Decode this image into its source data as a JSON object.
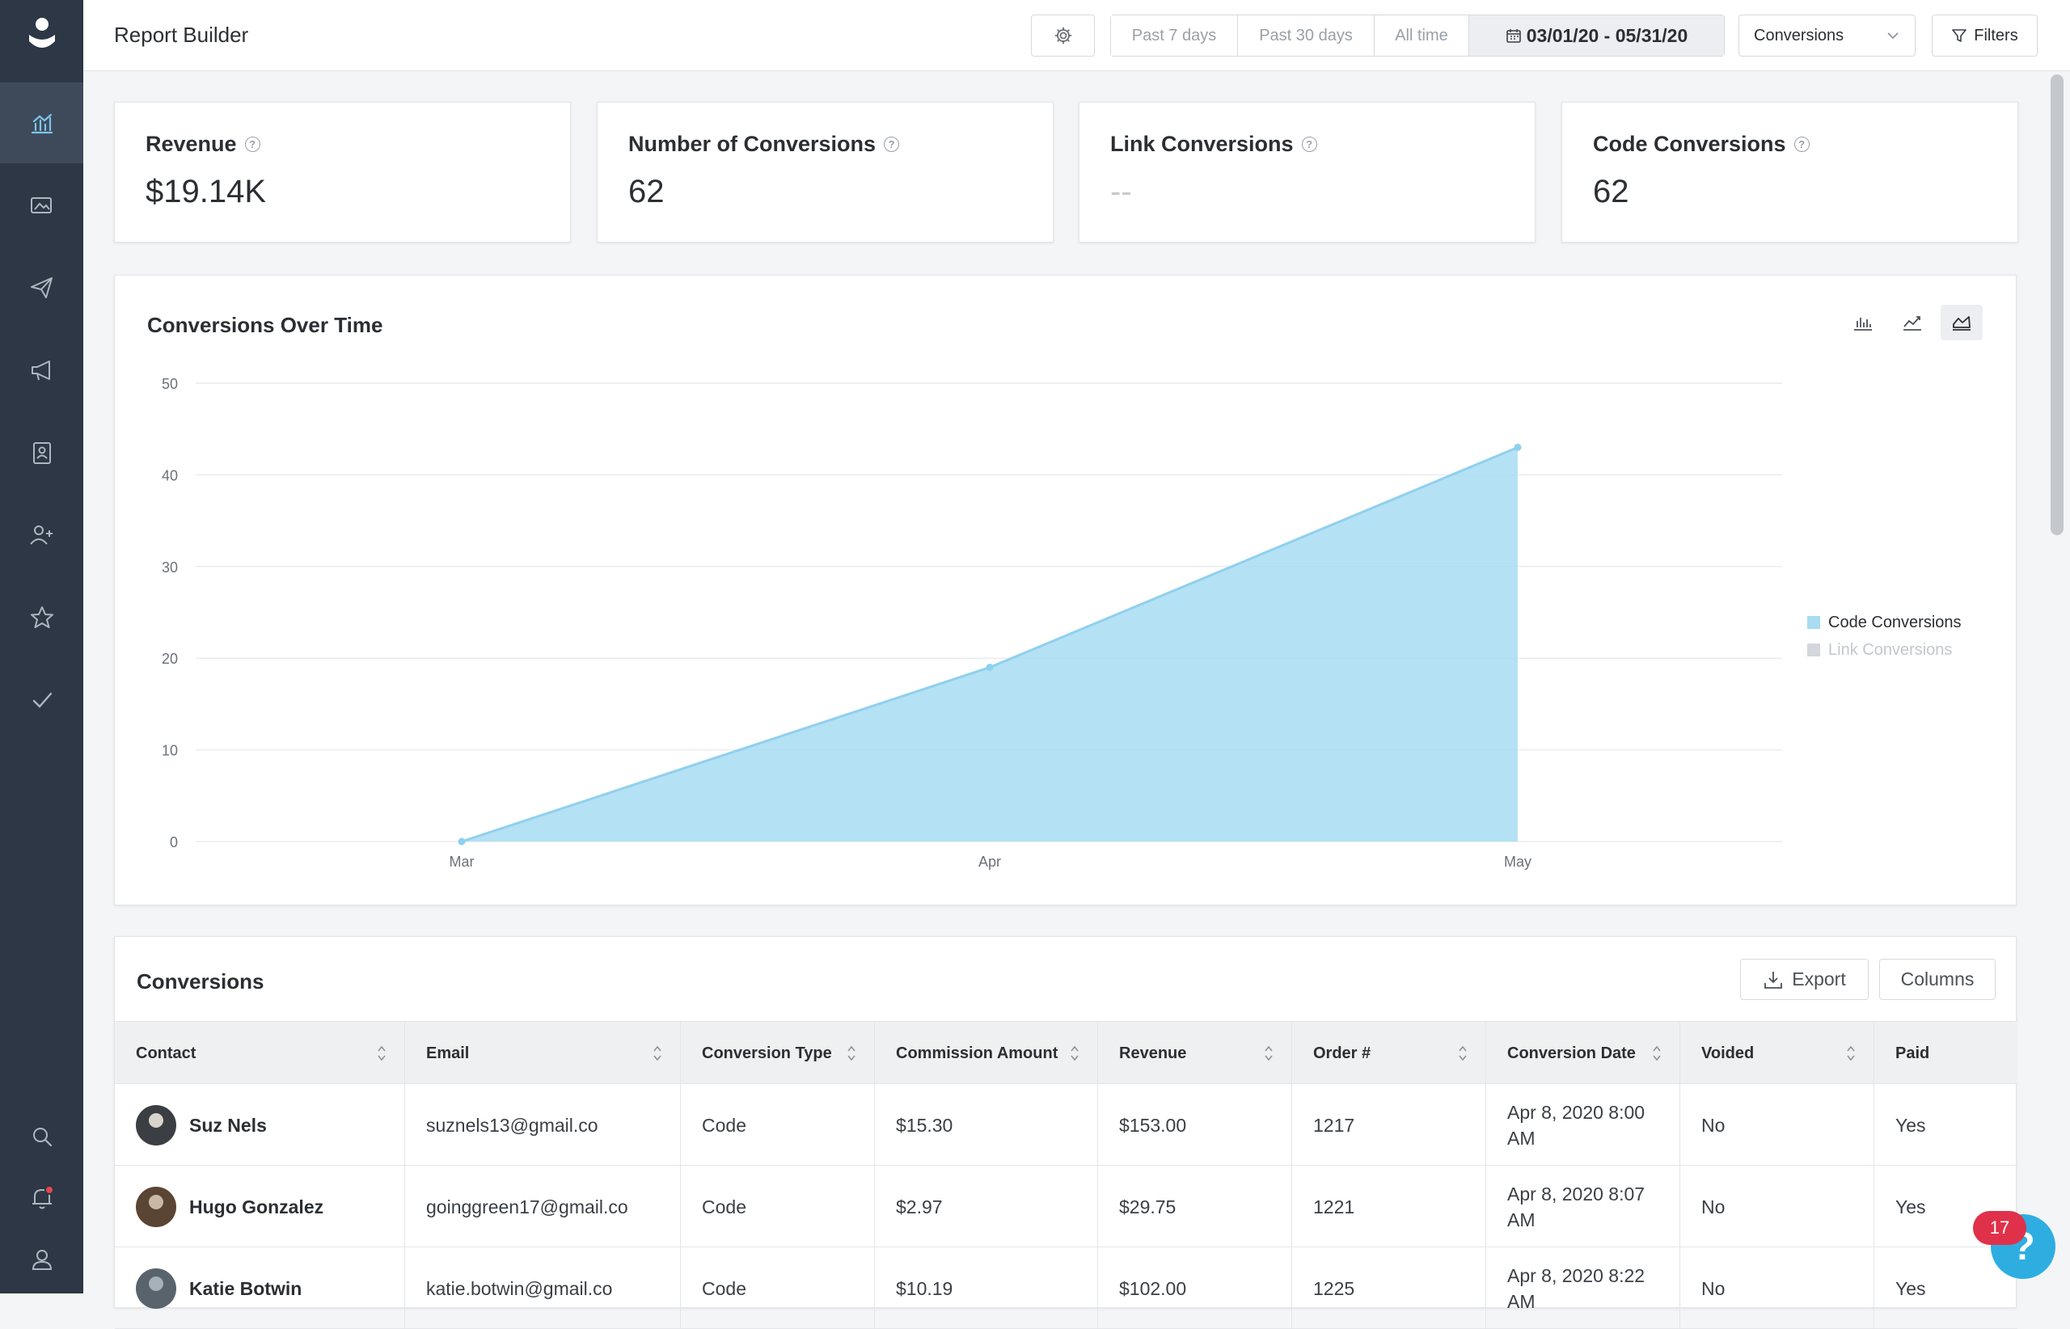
{
  "header": {
    "title": "Report Builder",
    "ranges": [
      "Past 7 days",
      "Past 30 days",
      "All time"
    ],
    "date_range": "03/01/20 - 05/31/20",
    "metric_select": "Conversions",
    "filters_label": "Filters",
    "icons": [
      "gear-icon",
      "calendar-icon",
      "chevron-down-icon",
      "filter-icon"
    ]
  },
  "sidebar": {
    "items": [
      "reports-icon",
      "gallery-icon",
      "send-icon",
      "megaphone-icon",
      "contacts-icon",
      "add-user-icon",
      "star-icon",
      "check-icon"
    ],
    "bottom": [
      "search-icon",
      "bell-icon",
      "user-icon"
    ]
  },
  "kpis": [
    {
      "label": "Revenue",
      "value": "$19.14K"
    },
    {
      "label": "Number of Conversions",
      "value": "62"
    },
    {
      "label": "Link Conversions",
      "value": "--"
    },
    {
      "label": "Code Conversions",
      "value": "62"
    }
  ],
  "chart": {
    "title": "Conversions Over Time",
    "colors": {
      "code": "#a8dcf2",
      "code_line": "#8fd0ee",
      "link": "#d3d6da"
    }
  },
  "chart_data": {
    "type": "area",
    "x": [
      "Mar",
      "Apr",
      "May"
    ],
    "series": [
      {
        "name": "Code Conversions",
        "values": [
          0,
          19,
          43
        ]
      },
      {
        "name": "Link Conversions",
        "values": [
          0,
          0,
          0
        ]
      }
    ],
    "yticks": [
      0,
      10,
      20,
      30,
      40,
      50
    ],
    "ylim": [
      0,
      50
    ],
    "grid": true,
    "legend": "right"
  },
  "table": {
    "title": "Conversions",
    "export_label": "Export",
    "columns_label": "Columns",
    "headers": [
      "Contact",
      "Email",
      "Conversion Type",
      "Commission Amount",
      "Revenue",
      "Order #",
      "Conversion Date",
      "Voided",
      "Paid"
    ],
    "rows": [
      {
        "contact": "Suz Nels",
        "email": "suznels13@gmail.co",
        "type": "Code",
        "commission": "$15.30",
        "revenue": "$153.00",
        "order": "1217",
        "date": "Apr 8, 2020 8:00 AM",
        "voided": "No",
        "paid": "Yes"
      },
      {
        "contact": "Hugo Gonzalez",
        "email": "goinggreen17@gmail.co",
        "type": "Code",
        "commission": "$2.97",
        "revenue": "$29.75",
        "order": "1221",
        "date": "Apr 8, 2020 8:07 AM",
        "voided": "No",
        "paid": "Yes"
      },
      {
        "contact": "Katie Botwin",
        "email": "katie.botwin@gmail.co",
        "type": "Code",
        "commission": "$10.19",
        "revenue": "$102.00",
        "order": "1225",
        "date": "Apr 8, 2020 8:22 AM",
        "voided": "No",
        "paid": "Yes"
      }
    ]
  },
  "help": {
    "badge": "17",
    "icon": "?"
  }
}
